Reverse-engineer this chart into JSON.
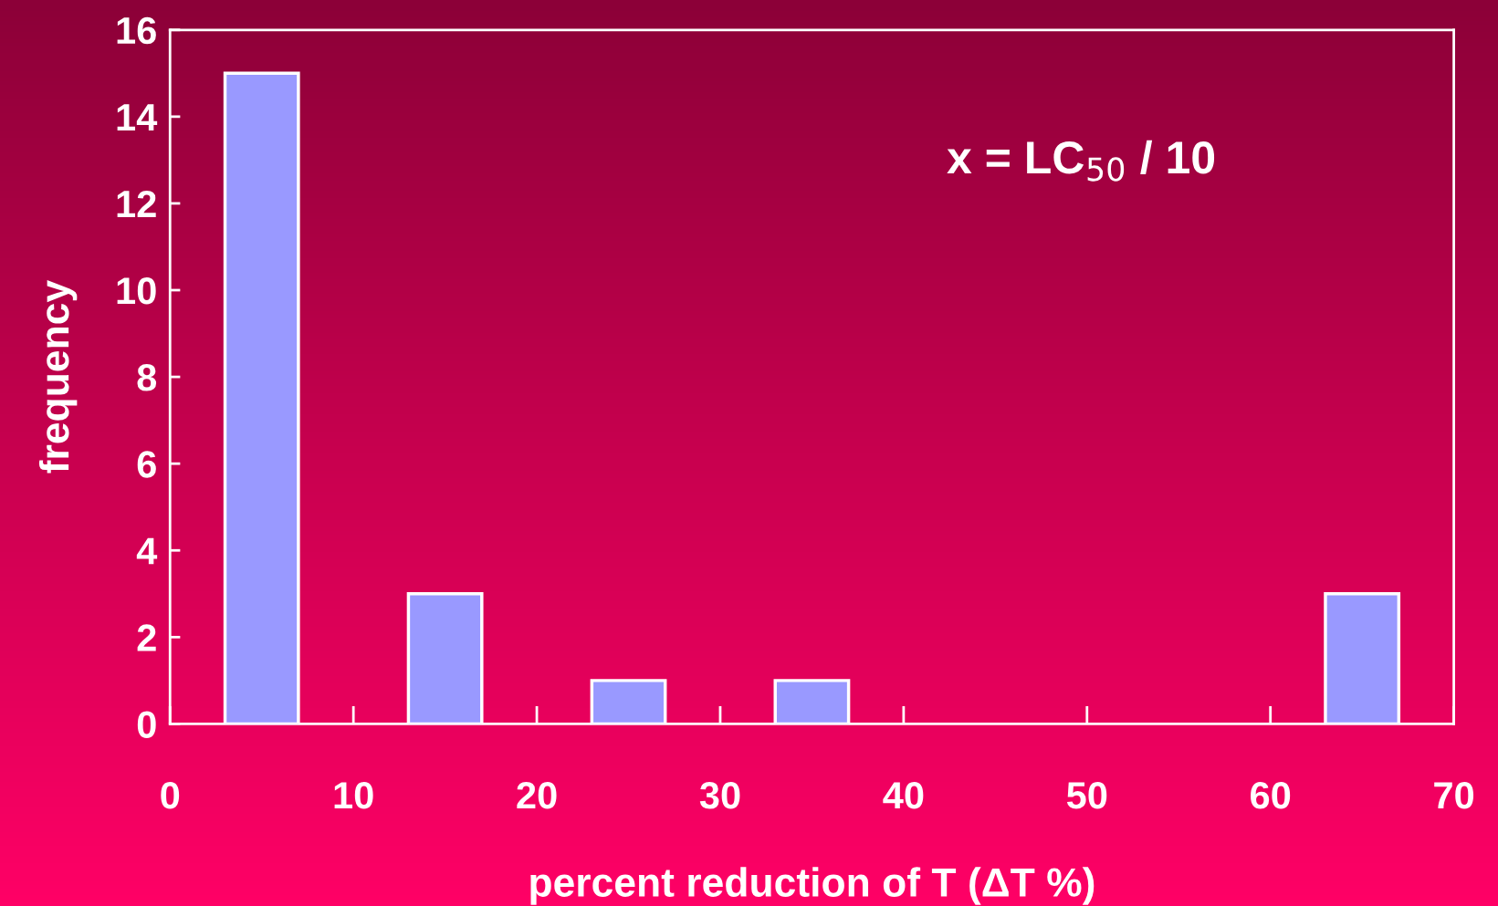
{
  "chart_data": {
    "type": "bar",
    "x": [
      5,
      15,
      25,
      35,
      65
    ],
    "values": [
      15,
      3,
      1,
      1,
      3
    ],
    "color": "#9999ff",
    "xlim": [
      0,
      70
    ],
    "xticks": [
      0,
      10,
      20,
      30,
      40,
      50,
      60,
      70
    ],
    "ylim": [
      0,
      16
    ],
    "yticks": [
      0,
      2,
      4,
      6,
      8,
      10,
      12,
      14,
      16
    ],
    "xlabel": "percent reduction of T (ΔT %)",
    "ylabel": "frequency",
    "annotations": [
      "x = LC$_{50}$ / 10"
    ],
    "grid": false,
    "legend": false
  }
}
